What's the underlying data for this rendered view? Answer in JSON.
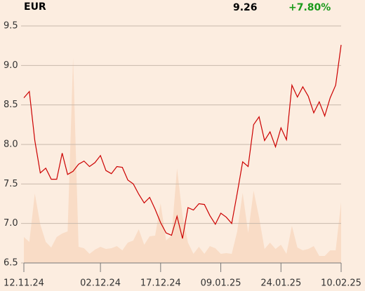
{
  "chart_data": {
    "type": "line",
    "title": "EUR",
    "last": 9.26,
    "change": "+7.80%",
    "change_color": "#1a9a1a",
    "categories": [
      "12.11.24",
      null,
      null,
      null,
      null,
      null,
      null,
      null,
      null,
      null,
      null,
      null,
      null,
      null,
      "02.12.24",
      null,
      null,
      null,
      null,
      null,
      null,
      null,
      null,
      null,
      null,
      "17.12.24",
      null,
      null,
      null,
      null,
      null,
      null,
      null,
      null,
      null,
      null,
      "09.01.25",
      null,
      null,
      null,
      null,
      null,
      null,
      null,
      null,
      null,
      null,
      "24.01.25",
      null,
      null,
      null,
      null,
      null,
      null,
      null,
      null,
      null,
      null,
      "10.02.25"
    ],
    "series": [
      {
        "color": "#cc0000",
        "values": [
          8.59,
          8.67,
          8.05,
          7.64,
          7.7,
          7.56,
          7.56,
          7.89,
          7.62,
          7.66,
          7.75,
          7.79,
          7.72,
          7.77,
          7.86,
          7.67,
          7.63,
          7.72,
          7.71,
          7.55,
          7.5,
          7.37,
          7.26,
          7.33,
          7.18,
          7.01,
          6.88,
          6.85,
          7.09,
          6.81,
          7.2,
          7.17,
          7.25,
          7.24,
          7.1,
          6.99,
          7.13,
          7.08,
          7.0,
          7.38,
          7.78,
          7.72,
          8.25,
          8.35,
          8.05,
          8.16,
          7.97,
          8.21,
          8.06,
          8.75,
          8.6,
          8.73,
          8.61,
          8.4,
          8.54,
          8.36,
          8.59,
          8.75,
          9.26
        ]
      },
      {
        "color": "#f9dcc6",
        "axis": "y2",
        "area": true,
        "values": [
          37,
          30,
          99,
          55,
          30,
          22,
          37,
          42,
          45,
          293,
          23,
          21,
          13,
          19,
          23,
          20,
          21,
          24,
          18,
          29,
          32,
          48,
          26,
          38,
          39,
          85,
          32,
          39,
          135,
          68,
          29,
          13,
          23,
          13,
          24,
          21,
          13,
          14,
          13,
          45,
          100,
          43,
          103,
          65,
          20,
          29,
          20,
          26,
          13,
          53,
          22,
          18,
          20,
          24,
          10,
          10,
          18,
          18,
          87
        ]
      }
    ],
    "ylim": [
      6.5,
      9.5
    ],
    "yticks": [
      6.5,
      {
        "value": 7,
        "label": "7.0"
      },
      7.5,
      {
        "value": 8,
        "label": "8.0"
      },
      8.5,
      {
        "value": 9,
        "label": "9.0"
      },
      9.5
    ],
    "y2lim": [
      0,
      338
    ],
    "grid": true
  }
}
